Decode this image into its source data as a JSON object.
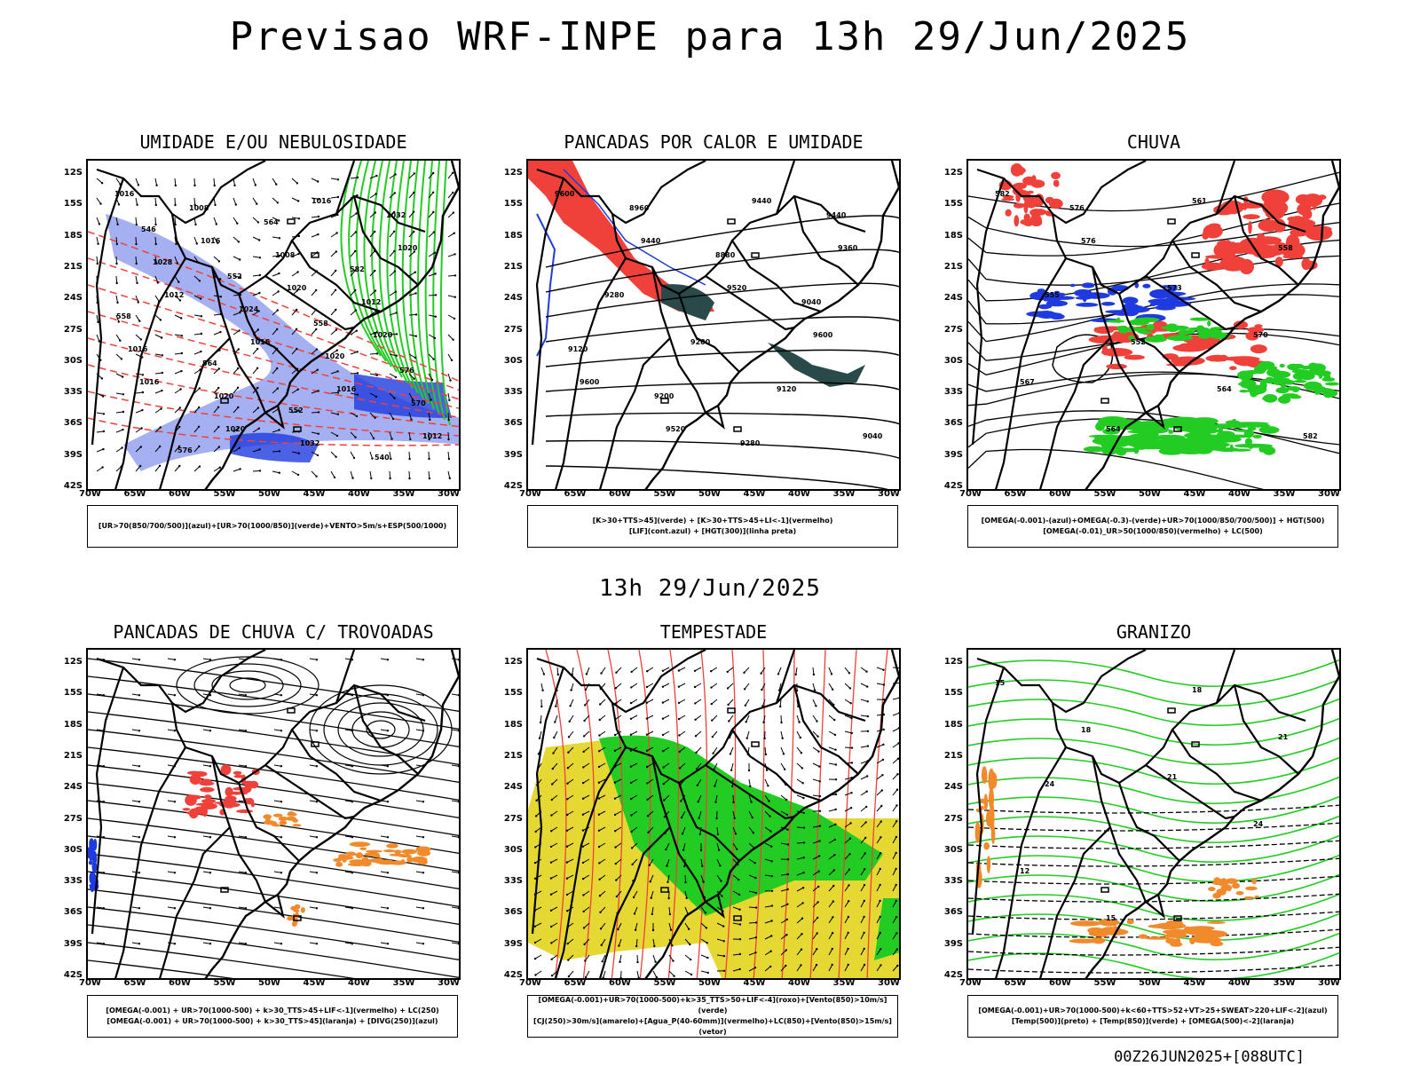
{
  "header": {
    "title": "Previsao WRF-INPE  para 13h 29/Jun/2025"
  },
  "middle": {
    "time": "13h 29/Jun/2025"
  },
  "footer": {
    "run": "00Z26JUN2025+[088UTC]"
  },
  "axes": {
    "lat": [
      "12S",
      "15S",
      "18S",
      "21S",
      "24S",
      "27S",
      "30S",
      "33S",
      "36S",
      "39S",
      "42S"
    ],
    "lon": [
      "70W",
      "65W",
      "60W",
      "55W",
      "50W",
      "45W",
      "40W",
      "35W",
      "30W"
    ]
  },
  "panels": [
    {
      "title": "UMIDADE E/OU NEBULOSIDADE",
      "legend": [
        "[UR>70(850/700/500)](azul)+[UR>70(1000/850)](verde)+VENTO>5m/s+ESP(500/1000)"
      ]
    },
    {
      "title": "PANCADAS POR CALOR E UMIDADE",
      "legend": [
        "[K>30+TTS>45](verde) + [K>30+TTS>45+LI<-1](vermelho)",
        "[LIF](cont.azul) + [HGT(300)](linha preta)"
      ]
    },
    {
      "title": "CHUVA",
      "legend": [
        "[OMEGA(-0.001)-(azul)+OMEGA(-0.3)-(verde)+UR>70(1000/850/700/500)] + HGT(500)",
        "[OMEGA(-0.01)_UR>50(1000/850)(vermelho) + LC(500)"
      ]
    },
    {
      "title": "PANCADAS DE CHUVA C/ TROVOADAS",
      "legend": [
        "[OMEGA(-0.001) + UR>70(1000-500) + k>30_TTS>45+LIF<-1](vermelho) + LC(250)",
        "[OMEGA(-0.001) + UR>70(1000-500) + k>30_TTS>45](laranja) + [DIVG(250)](azul)"
      ]
    },
    {
      "title": "TEMPESTADE",
      "legend": [
        "[OMEGA(-0.001)+UR>70(1000-500)+k>35_TTS>50+LIF<-4](roxo)+[Vento(850)>10m/s](verde)",
        "[CJ(250)>30m/s](amarelo)+[Agua_P(40-60mm)](vermelho)+LC(850)+[Vento(850)>15m/s](vetor)"
      ]
    },
    {
      "title": "GRANIZO",
      "legend": [
        "[OMEGA(-0.001)+UR>70(1000-500)+k<60+TTS>52+VT>25+SWEAT>220+LIF<-2](azul)",
        "[Temp(500)](preto) + [Temp(850)](verde) + [OMEGA(500)<-2](laranja)"
      ]
    }
  ],
  "map_text": {
    "p1": [
      "1016",
      "1016",
      "1020",
      "1020",
      "1016",
      "1020",
      "1016",
      "1020",
      "1012",
      "1016",
      "1016",
      "1012",
      "1008",
      "1008",
      "1012",
      "1016",
      "1020",
      "1032",
      "1032",
      "1028",
      "1024",
      "1020",
      "570",
      "576",
      "564",
      "582",
      "558",
      "564",
      "552",
      "540",
      "546",
      "552",
      "558",
      "576"
    ],
    "p2": [
      "9600",
      "9440",
      "9520",
      "9600",
      "9600",
      "9520",
      "9440",
      "9360",
      "9280",
      "9200",
      "9120",
      "9040",
      "8960",
      "8880",
      "9040",
      "9120",
      "9200",
      "9280",
      "9440"
    ],
    "p3": [
      "582",
      "576",
      "573",
      "570",
      "567",
      "564",
      "561",
      "558",
      "555",
      "552",
      "564",
      "582",
      "576"
    ],
    "p5": [],
    "p6": [
      "15",
      "18",
      "21",
      "24",
      "12",
      "15",
      "18",
      "21",
      "24"
    ]
  },
  "colors": {
    "blue_fill": "#8f9cf0",
    "dark_blue": "#1f3be0",
    "green": "#22cc22",
    "red": "#f0403a",
    "orange": "#f08a2a",
    "yellow": "#e6d833",
    "teal": "#2a4a4a",
    "black": "#000000"
  }
}
